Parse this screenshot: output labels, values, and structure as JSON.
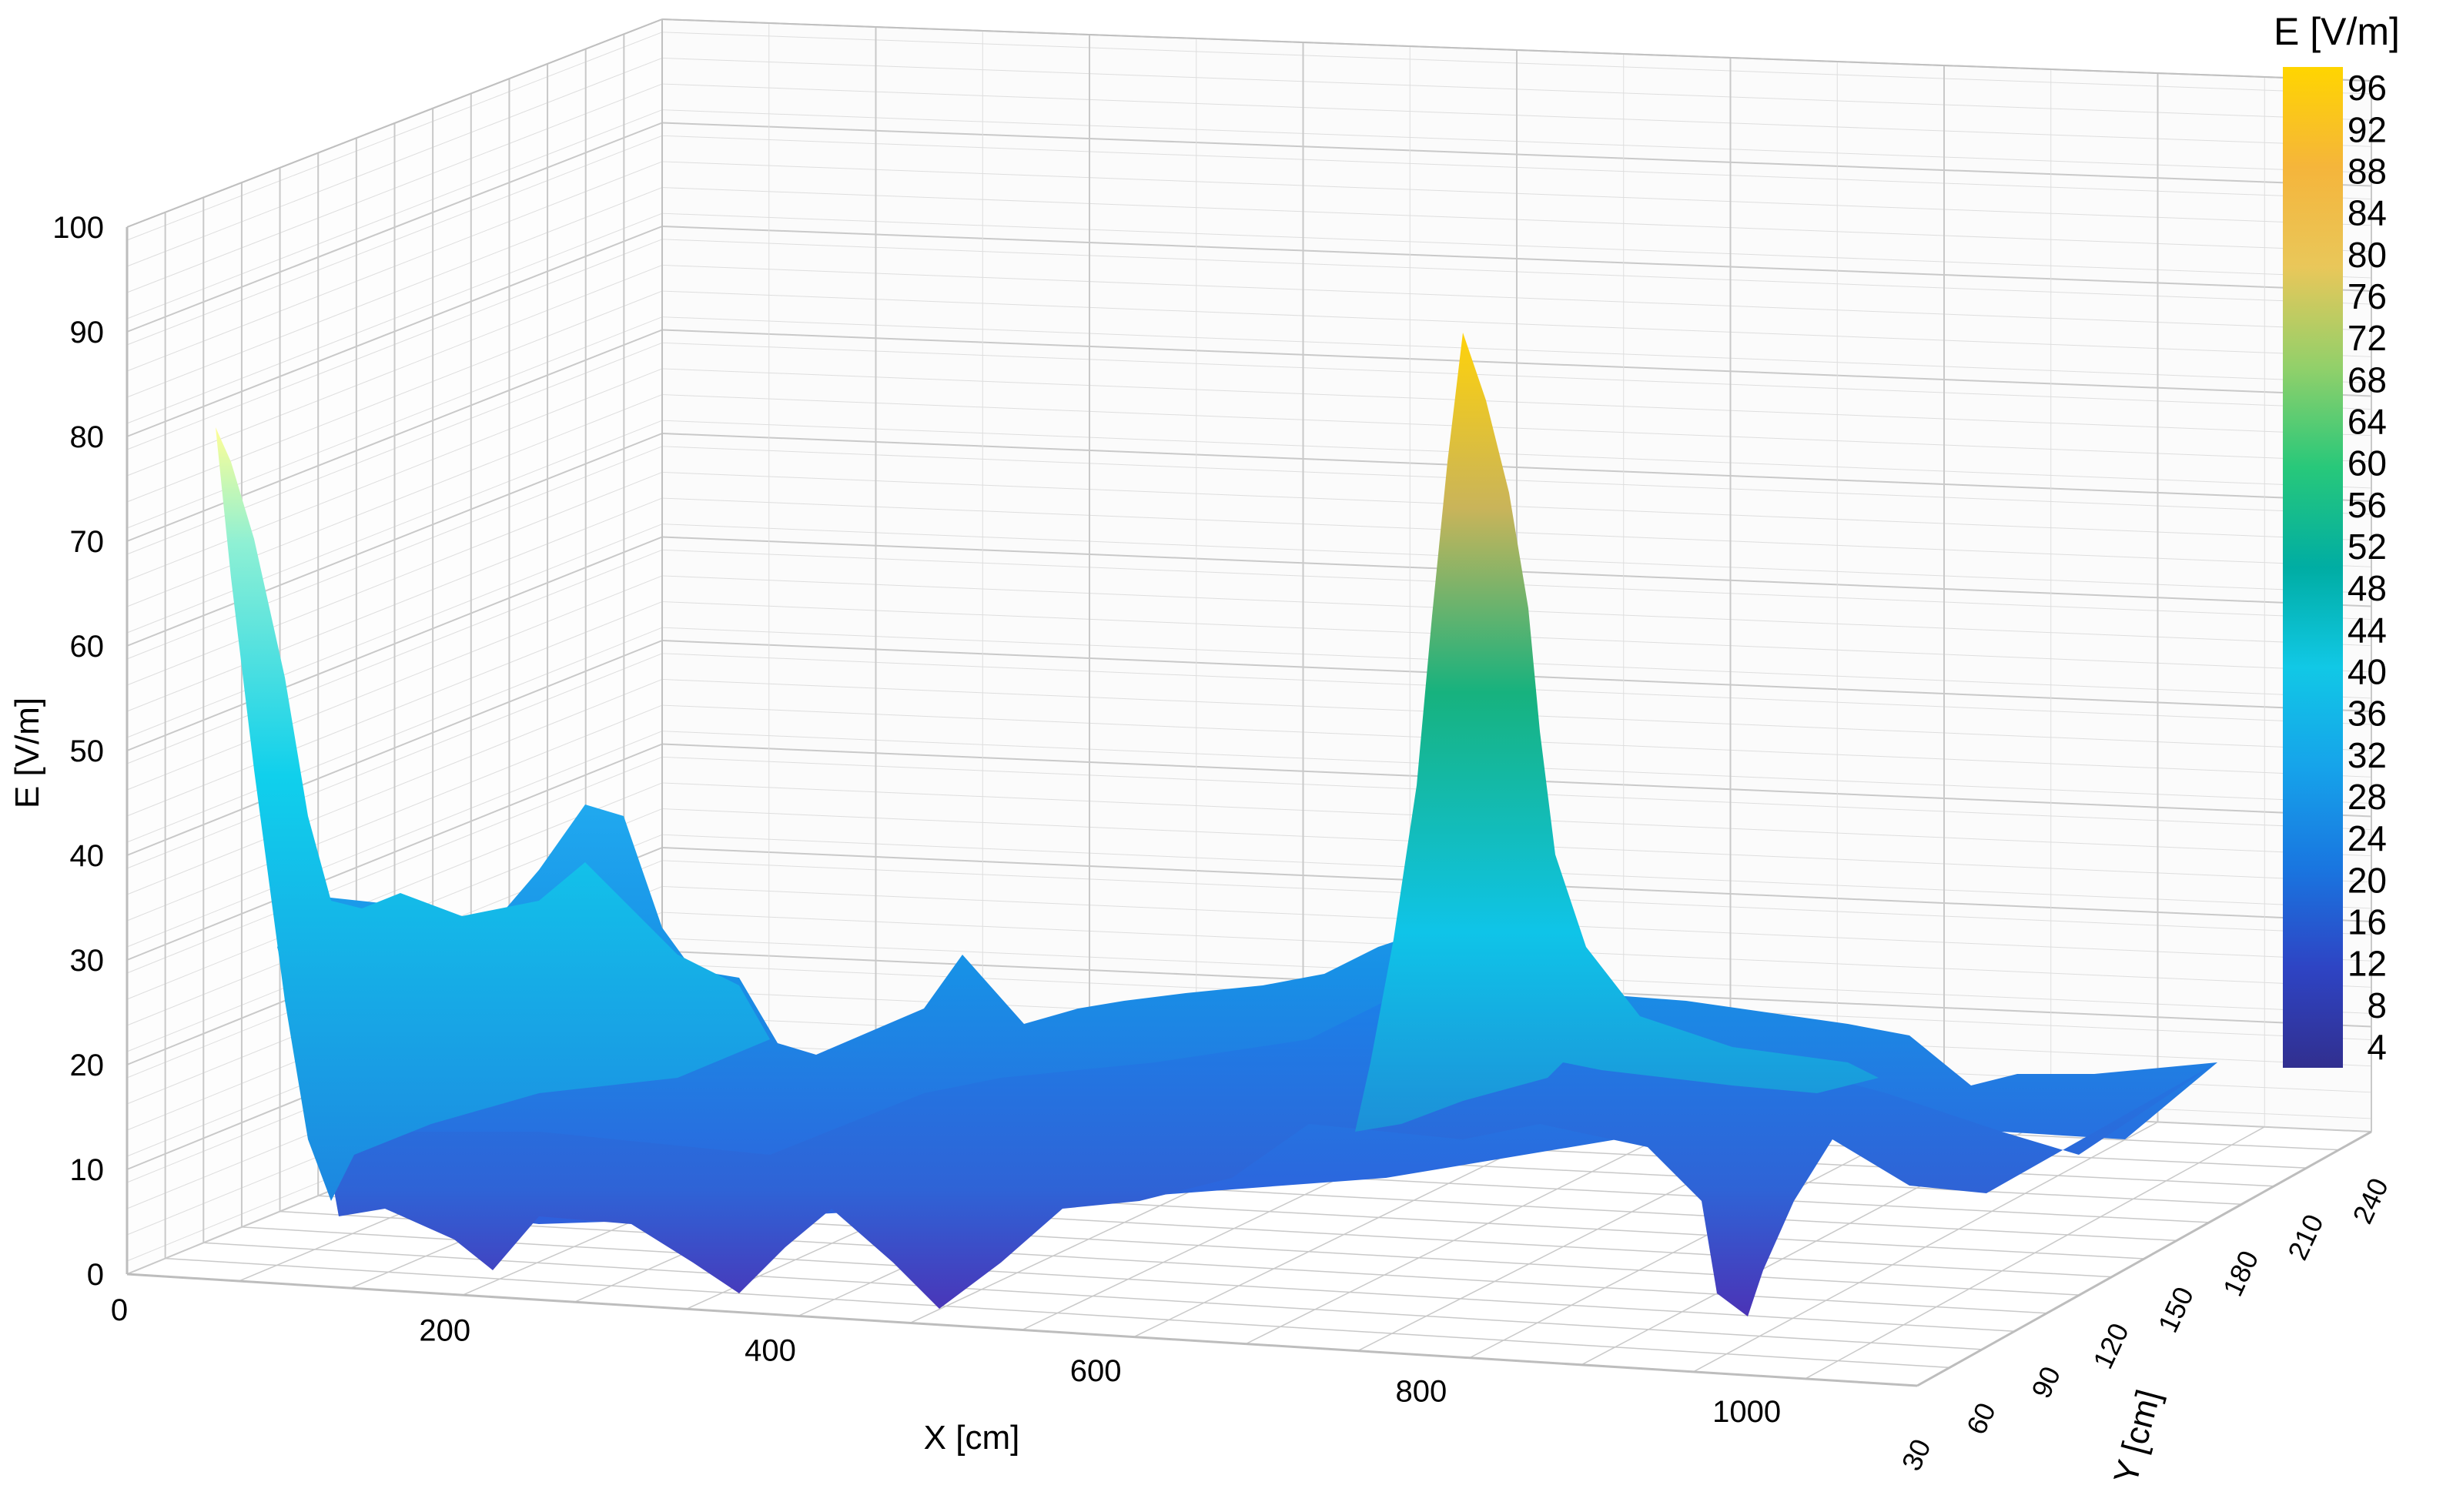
{
  "chart_data": {
    "type": "surface3d",
    "title": "",
    "xlabel": "X [cm]",
    "ylabel": "Y [cm]",
    "zlabel": "E [V/m]",
    "xlim": [
      0,
      1100
    ],
    "ylim": [
      30,
      240
    ],
    "zlim": [
      0,
      100
    ],
    "x_ticks": [
      "0",
      "200",
      "400",
      "600",
      "800",
      "1000"
    ],
    "y_ticks": [
      "30",
      "60",
      "90",
      "120",
      "150",
      "180",
      "210",
      "240"
    ],
    "z_ticks": [
      "0",
      "10",
      "20",
      "30",
      "40",
      "50",
      "60",
      "70",
      "80",
      "90",
      "100"
    ],
    "grid": true,
    "colorbar": {
      "label": "E [V/m]",
      "ticks": [
        "96",
        "92",
        "88",
        "84",
        "80",
        "76",
        "72",
        "68",
        "64",
        "60",
        "56",
        "52",
        "48",
        "44",
        "40",
        "36",
        "32",
        "28",
        "24",
        "20",
        "16",
        "12",
        "8",
        "4"
      ],
      "range": [
        2,
        98
      ],
      "stops": [
        "#312f8f",
        "#2e44c4",
        "#1976e0",
        "#16a3ea",
        "#11c8e6",
        "#00ada3",
        "#28c87a",
        "#92d06a",
        "#e9c75a",
        "#f5b53b",
        "#ffd500"
      ]
    },
    "peaks": [
      {
        "x": 30,
        "y": 230,
        "e": 82
      },
      {
        "x": 285,
        "y": 230,
        "e": 43
      },
      {
        "x": 880,
        "y": 210,
        "e": 97
      },
      {
        "x": 575,
        "y": 30,
        "e": 28
      },
      {
        "x": 1010,
        "y": 30,
        "e": 3
      }
    ]
  }
}
